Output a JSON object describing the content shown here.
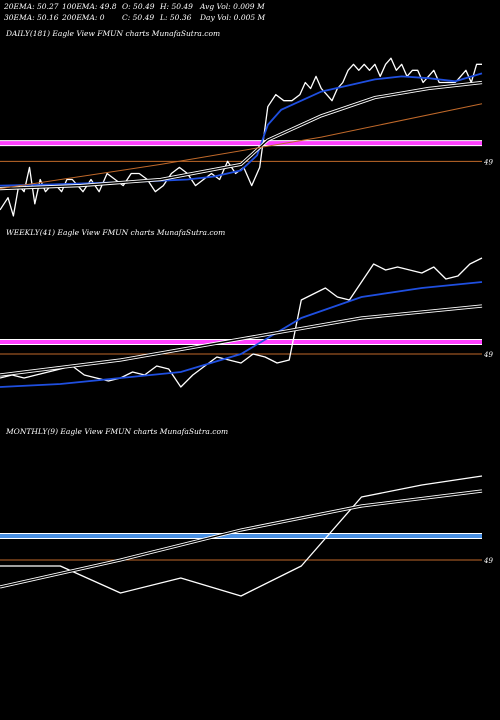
{
  "header": {
    "row1": [
      {
        "key": "ema20",
        "text": "20EMA: 50.27"
      },
      {
        "key": "ema100",
        "text": "100EMA: 49.8"
      },
      {
        "key": "open",
        "text": "O: 50.49"
      },
      {
        "key": "high",
        "text": "H: 50.49"
      },
      {
        "key": "avgvol",
        "text": "Avg Vol: 0.009 M"
      }
    ],
    "row2": [
      {
        "key": "ema30",
        "text": "30EMA: 50.16"
      },
      {
        "key": "ema200",
        "text": "200EMA: 0"
      },
      {
        "key": "close",
        "text": "C: 50.49"
      },
      {
        "key": "low",
        "text": "L: 50.36"
      },
      {
        "key": "dayvol",
        "text": "Day Vol: 0.005 M"
      }
    ]
  },
  "colors": {
    "background": "#000000",
    "price": "#ffffff",
    "ema_fast": "#1f4fe0",
    "ema_slow_outline": "#ffffff",
    "long_trend": "#c0692a",
    "support_daily": "#ff40ff",
    "support_monthly": "#4a90e2",
    "reference": "#c0692a"
  },
  "chart_data": [
    {
      "type": "line",
      "title": "DAILY(181) Eagle View FMUN charts MunafaSutra.com",
      "ylim": [
        48.0,
        51.0
      ],
      "xlim": [
        0,
        180
      ],
      "price_level_label": "49",
      "price_level": 49.0,
      "support_level": 49.3,
      "series": [
        {
          "key": "price",
          "x": [
            0,
            3,
            5,
            7,
            9,
            11,
            13,
            15,
            17,
            19,
            21,
            23,
            25,
            27,
            29,
            31,
            34,
            37,
            40,
            43,
            46,
            49,
            52,
            55,
            58,
            61,
            64,
            67,
            70,
            73,
            76,
            79,
            82,
            85,
            88,
            91,
            94,
            97,
            100,
            103,
            106,
            109,
            112,
            114,
            116,
            118,
            120,
            122,
            124,
            126,
            128,
            130,
            132,
            134,
            136,
            138,
            140,
            142,
            144,
            146,
            148,
            150,
            152,
            154,
            156,
            158,
            160,
            162,
            164,
            166,
            168,
            170,
            172,
            174,
            176,
            178,
            180
          ],
          "y": [
            48.2,
            48.4,
            48.1,
            48.6,
            48.5,
            48.9,
            48.3,
            48.7,
            48.5,
            48.6,
            48.6,
            48.5,
            48.7,
            48.7,
            48.6,
            48.5,
            48.7,
            48.5,
            48.8,
            48.7,
            48.6,
            48.8,
            48.8,
            48.7,
            48.5,
            48.6,
            48.8,
            48.9,
            48.8,
            48.6,
            48.7,
            48.8,
            48.7,
            49.0,
            48.8,
            48.9,
            48.6,
            48.9,
            49.9,
            50.1,
            50.0,
            50.0,
            50.1,
            50.3,
            50.2,
            50.4,
            50.2,
            50.1,
            50.0,
            50.2,
            50.3,
            50.5,
            50.6,
            50.5,
            50.6,
            50.5,
            50.6,
            50.4,
            50.6,
            50.7,
            50.5,
            50.6,
            50.4,
            50.5,
            50.5,
            50.3,
            50.4,
            50.5,
            50.3,
            50.3,
            50.3,
            50.3,
            50.4,
            50.5,
            50.3,
            50.6,
            50.6
          ]
        },
        {
          "key": "ema_fast",
          "x": [
            0,
            20,
            40,
            60,
            70,
            80,
            90,
            96,
            100,
            105,
            110,
            120,
            130,
            140,
            150,
            160,
            170,
            180
          ],
          "y": [
            48.6,
            48.62,
            48.65,
            48.68,
            48.7,
            48.75,
            48.85,
            49.1,
            49.6,
            49.85,
            49.95,
            50.15,
            50.25,
            50.35,
            50.4,
            50.37,
            50.32,
            50.45
          ]
        },
        {
          "key": "ema_slow",
          "x": [
            0,
            30,
            60,
            90,
            100,
            120,
            140,
            160,
            180
          ],
          "y": [
            48.55,
            48.6,
            48.7,
            48.95,
            49.35,
            49.75,
            50.05,
            50.2,
            50.3
          ]
        },
        {
          "key": "long_trend",
          "x": [
            0,
            60,
            120,
            180
          ],
          "y": [
            48.55,
            48.95,
            49.4,
            49.95
          ]
        }
      ]
    },
    {
      "type": "line",
      "title": "WEEKLY(41) Eagle View FMUN charts MunafaSutra.com",
      "ylim": [
        48.0,
        51.0
      ],
      "xlim": [
        0,
        40
      ],
      "price_level_label": "49",
      "price_level": 49.1,
      "support_level": 49.3,
      "series": [
        {
          "key": "price",
          "x": [
            0,
            1,
            2,
            3,
            4,
            5,
            6,
            7,
            8,
            9,
            10,
            11,
            12,
            13,
            14,
            15,
            16,
            17,
            18,
            19,
            20,
            21,
            22,
            23,
            24,
            25,
            26,
            27,
            28,
            29,
            30,
            31,
            32,
            33,
            34,
            35,
            36,
            37,
            38,
            39,
            40
          ],
          "y": [
            48.7,
            48.75,
            48.7,
            48.75,
            48.8,
            48.85,
            48.9,
            48.75,
            48.7,
            48.65,
            48.7,
            48.8,
            48.75,
            48.9,
            48.85,
            48.55,
            48.75,
            48.9,
            49.05,
            49.0,
            48.95,
            49.1,
            49.05,
            48.95,
            49.0,
            50.0,
            50.1,
            50.2,
            50.05,
            50.0,
            50.3,
            50.6,
            50.5,
            50.55,
            50.5,
            50.45,
            50.55,
            50.35,
            50.4,
            50.6,
            50.7
          ]
        },
        {
          "key": "ema_fast",
          "x": [
            0,
            5,
            10,
            15,
            20,
            25,
            30,
            35,
            40
          ],
          "y": [
            48.55,
            48.6,
            48.7,
            48.8,
            49.1,
            49.7,
            50.05,
            50.2,
            50.3
          ]
        },
        {
          "key": "ema_slow",
          "x": [
            0,
            10,
            20,
            30,
            40
          ],
          "y": [
            48.75,
            49.0,
            49.35,
            49.7,
            49.9
          ]
        }
      ]
    },
    {
      "type": "line",
      "title": "MONTHLY(9) Eagle View FMUN charts MunafaSutra.com",
      "ylim": [
        48.0,
        51.0
      ],
      "xlim": [
        0,
        8
      ],
      "price_level_label": "49",
      "price_level": 49.0,
      "support_level": 49.4,
      "series": [
        {
          "key": "price",
          "x": [
            0,
            1,
            2,
            3,
            4,
            5,
            6,
            7,
            8
          ],
          "y": [
            48.9,
            48.9,
            48.45,
            48.7,
            48.4,
            48.9,
            50.05,
            50.25,
            50.4
          ]
        },
        {
          "key": "ema_slow",
          "x": [
            0,
            2,
            4,
            6,
            8
          ],
          "y": [
            48.55,
            49.0,
            49.5,
            49.9,
            50.15
          ]
        }
      ]
    }
  ]
}
